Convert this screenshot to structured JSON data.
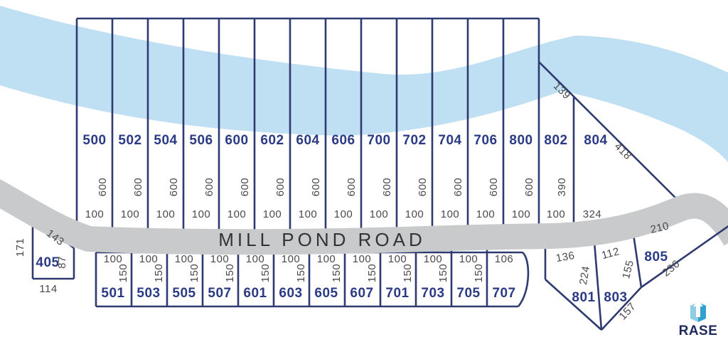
{
  "colors": {
    "water": "#BFDFF3",
    "road": "#C9CACB",
    "lot_line": "#2E3A70",
    "lot_number": "#2B3A85",
    "dimension_text": "#4A4A4A",
    "road_text": "#333333",
    "logo_text": "#1C2A5C",
    "logo_light": "#8FCCE6",
    "logo_dark": "#33A1CE"
  },
  "road": {
    "label": "MILL POND ROAD"
  },
  "upper_row": {
    "lots": [
      {
        "number": "500",
        "depth": "600",
        "frontage": "100"
      },
      {
        "number": "502",
        "depth": "600",
        "frontage": "100"
      },
      {
        "number": "504",
        "depth": "600",
        "frontage": "100"
      },
      {
        "number": "506",
        "depth": "600",
        "frontage": "100"
      },
      {
        "number": "600",
        "depth": "600",
        "frontage": "100"
      },
      {
        "number": "602",
        "depth": "600",
        "frontage": "100"
      },
      {
        "number": "604",
        "depth": "600",
        "frontage": "100"
      },
      {
        "number": "606",
        "depth": "600",
        "frontage": "100"
      },
      {
        "number": "700",
        "depth": "600",
        "frontage": "100"
      },
      {
        "number": "702",
        "depth": "600",
        "frontage": "100"
      },
      {
        "number": "704",
        "depth": "600",
        "frontage": "100"
      },
      {
        "number": "706",
        "depth": "600",
        "frontage": "100"
      },
      {
        "number": "800",
        "depth": "600",
        "frontage": "100"
      }
    ],
    "lot_802": {
      "number": "802",
      "depth": "390",
      "frontage": "100",
      "north_edge": "139"
    },
    "lot_804": {
      "number": "804",
      "frontage": "324",
      "east_edge": "418"
    }
  },
  "lower_row": {
    "lots": [
      {
        "number": "501",
        "frontage": "100",
        "depth": "150"
      },
      {
        "number": "503",
        "frontage": "100",
        "depth": "150"
      },
      {
        "number": "505",
        "frontage": "100",
        "depth": "150"
      },
      {
        "number": "507",
        "frontage": "100",
        "depth": "150"
      },
      {
        "number": "601",
        "frontage": "100",
        "depth": "150"
      },
      {
        "number": "603",
        "frontage": "100",
        "depth": "150"
      },
      {
        "number": "605",
        "frontage": "100",
        "depth": "150"
      },
      {
        "number": "607",
        "frontage": "100",
        "depth": "150"
      },
      {
        "number": "701",
        "frontage": "100",
        "depth": "150"
      },
      {
        "number": "703",
        "frontage": "100",
        "depth": "150"
      },
      {
        "number": "705",
        "frontage": "100",
        "depth": "150"
      },
      {
        "number": "707",
        "frontage": "106",
        "depth": ""
      }
    ]
  },
  "west_lot": {
    "number": "405",
    "edges": {
      "north": "143",
      "west": "171",
      "east": "87",
      "south": "114"
    }
  },
  "east_lots": [
    {
      "number": "801",
      "edges": {
        "north": "136",
        "east": "224"
      }
    },
    {
      "number": "803",
      "edges": {
        "north": "112",
        "east": "155",
        "south": "157"
      }
    },
    {
      "number": "805",
      "edges": {
        "north": "210",
        "east": "236"
      }
    }
  ],
  "logo": {
    "text": "RASE"
  }
}
